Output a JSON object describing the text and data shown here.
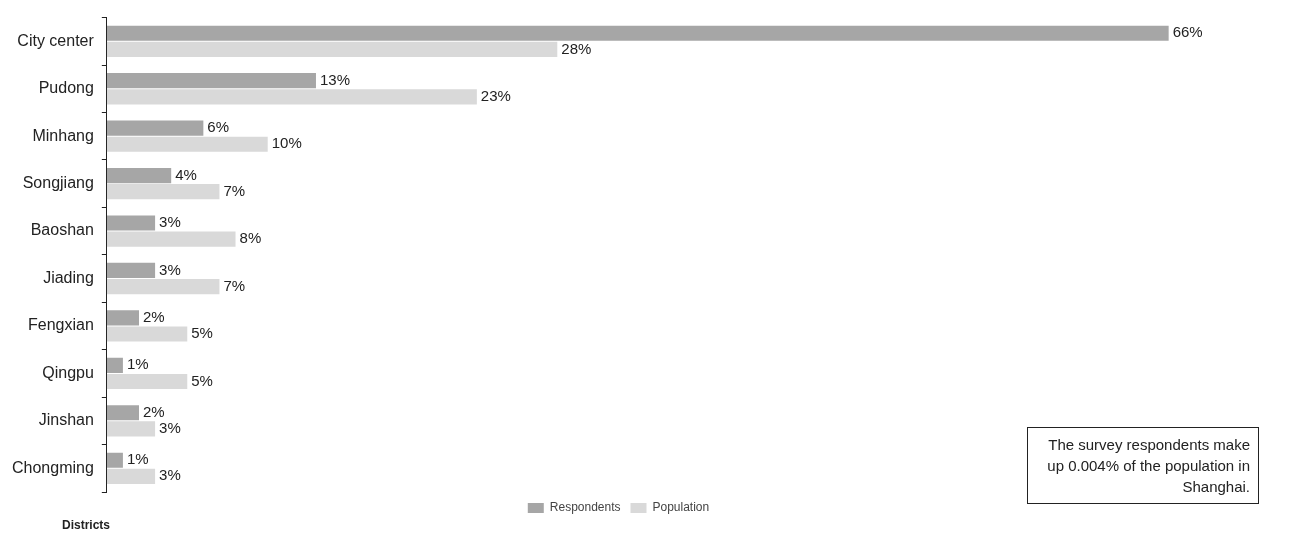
{
  "chart_data": {
    "type": "bar",
    "orientation": "horizontal",
    "ylabel": "Districts",
    "legend": "bottom",
    "categories": [
      "City center",
      "Pudong",
      "Minhang",
      "Songjiang",
      "Baoshan",
      "Jiading",
      "Fengxian",
      "Qingpu",
      "Jinshan",
      "Chongming"
    ],
    "series": [
      {
        "name": "Respondents",
        "color": "#a6a6a6",
        "values": [
          66,
          13,
          6,
          4,
          3,
          3,
          2,
          1,
          2,
          1
        ],
        "value_labels": [
          "66%",
          "13%",
          "6%",
          "4%",
          "3%",
          "3%",
          "2%",
          "1%",
          "2%",
          "1%"
        ]
      },
      {
        "name": "Population",
        "color": "#d9d9d9",
        "values": [
          28,
          23,
          10,
          7,
          8,
          7,
          5,
          5,
          3,
          3
        ],
        "value_labels": [
          "28%",
          "23%",
          "10%",
          "7%",
          "8%",
          "7%",
          "5%",
          "5%",
          "3%",
          "3%"
        ]
      }
    ],
    "annotations": [
      "The survey respondents make up 0.004% of the population in Shanghai."
    ]
  }
}
